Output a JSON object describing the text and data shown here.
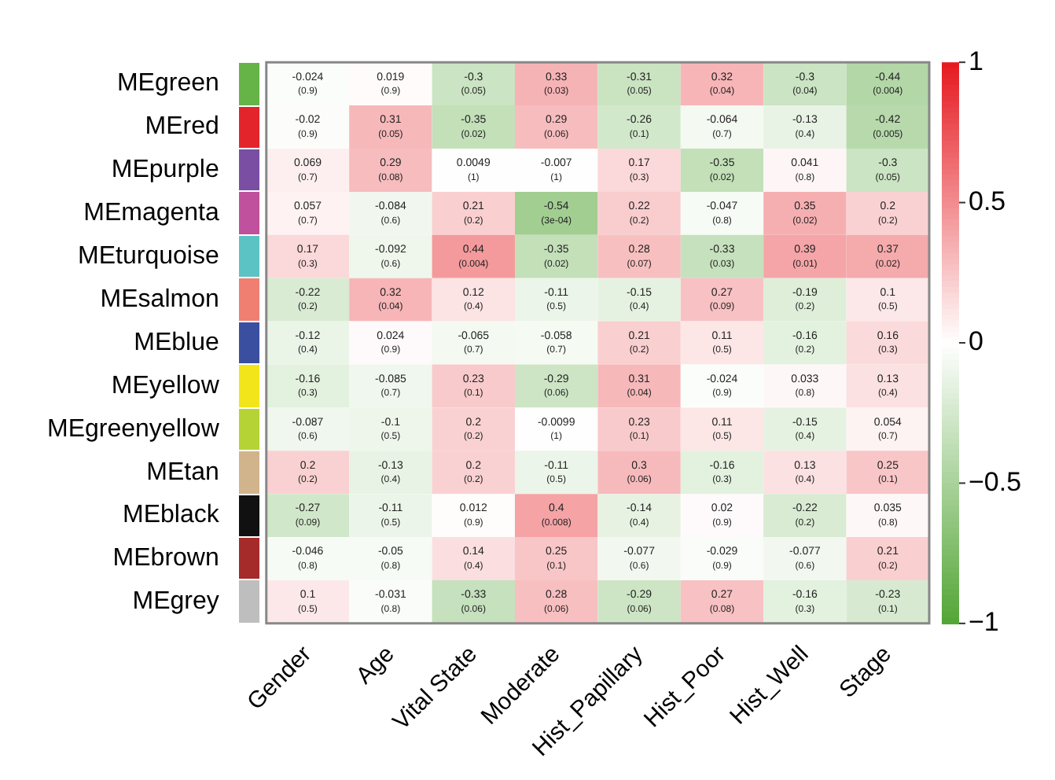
{
  "chart_data": {
    "type": "heatmap",
    "categories": [
      "Gender",
      "Age",
      "Vital State",
      "Moderate",
      "Hist_Papillary",
      "Hist_Poor",
      "Hist_Well",
      "Stage"
    ],
    "y_categories": [
      "MEgreen",
      "MEred",
      "MEpurple",
      "MEmagenta",
      "MEturquoise",
      "MEsalmon",
      "MEblue",
      "MEyellow",
      "MEgreenyellow",
      "MEtan",
      "MEblack",
      "MEbrown",
      "MEgrey"
    ],
    "cells": [
      [
        -0.024,
        0.019,
        -0.3,
        0.33,
        -0.31,
        0.32,
        -0.3,
        -0.44
      ],
      [
        -0.02,
        0.31,
        -0.35,
        0.29,
        -0.26,
        -0.064,
        -0.13,
        -0.42
      ],
      [
        0.069,
        0.29,
        0.0049,
        -0.007,
        0.17,
        -0.35,
        0.041,
        -0.3
      ],
      [
        0.057,
        -0.084,
        0.21,
        -0.54,
        0.22,
        -0.047,
        0.35,
        0.2
      ],
      [
        0.17,
        -0.092,
        0.44,
        -0.35,
        0.28,
        -0.33,
        0.39,
        0.37
      ],
      [
        -0.22,
        0.32,
        0.12,
        -0.11,
        -0.15,
        0.27,
        -0.19,
        0.1
      ],
      [
        -0.12,
        0.024,
        -0.065,
        -0.058,
        0.21,
        0.11,
        -0.16,
        0.16
      ],
      [
        -0.16,
        -0.085,
        0.23,
        -0.29,
        0.31,
        -0.024,
        0.033,
        0.13
      ],
      [
        -0.087,
        -0.1,
        0.2,
        -0.0099,
        0.23,
        0.11,
        -0.15,
        0.054
      ],
      [
        0.2,
        -0.13,
        0.2,
        -0.11,
        0.3,
        -0.16,
        0.13,
        0.25
      ],
      [
        -0.27,
        -0.11,
        0.012,
        0.4,
        -0.14,
        0.02,
        -0.22,
        0.035
      ],
      [
        -0.046,
        -0.05,
        0.14,
        0.25,
        -0.077,
        -0.029,
        -0.077,
        0.21
      ],
      [
        0.1,
        -0.031,
        -0.33,
        0.28,
        -0.29,
        0.27,
        -0.16,
        -0.23
      ]
    ],
    "cell_labels": [
      [
        "-0.024\n(0.9)",
        "0.019\n(0.9)",
        "-0.3\n(0.05)",
        "0.33\n(0.03)",
        "-0.31\n(0.05)",
        "0.32\n(0.04)",
        "-0.3\n(0.04)",
        "-0.44\n(0.004)"
      ],
      [
        "-0.02\n(0.9)",
        "0.31\n(0.05)",
        "-0.35\n(0.02)",
        "0.29\n(0.06)",
        "-0.26\n(0.1)",
        "-0.064\n(0.7)",
        "-0.13\n(0.4)",
        "-0.42\n(0.005)"
      ],
      [
        "0.069\n(0.7)",
        "0.29\n(0.08)",
        "0.0049\n(1)",
        "-0.007\n(1)",
        "0.17\n(0.3)",
        "-0.35\n(0.02)",
        "0.041\n(0.8)",
        "-0.3\n(0.05)"
      ],
      [
        "0.057\n(0.7)",
        "-0.084\n(0.6)",
        "0.21\n(0.2)",
        "-0.54\n(3e-04)",
        "0.22\n(0.2)",
        "-0.047\n(0.8)",
        "0.35\n(0.02)",
        "0.2\n(0.2)"
      ],
      [
        "0.17\n(0.3)",
        "-0.092\n(0.6)",
        "0.44\n(0.004)",
        "-0.35\n(0.02)",
        "0.28\n(0.07)",
        "-0.33\n(0.03)",
        "0.39\n(0.01)",
        "0.37\n(0.02)"
      ],
      [
        "-0.22\n(0.2)",
        "0.32\n(0.04)",
        "0.12\n(0.4)",
        "-0.11\n(0.5)",
        "-0.15\n(0.4)",
        "0.27\n(0.09)",
        "-0.19\n(0.2)",
        "0.1\n(0.5)"
      ],
      [
        "-0.12\n(0.4)",
        "0.024\n(0.9)",
        "-0.065\n(0.7)",
        "-0.058\n(0.7)",
        "0.21\n(0.2)",
        "0.11\n(0.5)",
        "-0.16\n(0.2)",
        "0.16\n(0.3)"
      ],
      [
        "-0.16\n(0.3)",
        "-0.085\n(0.7)",
        "0.23\n(0.1)",
        "-0.29\n(0.06)",
        "0.31\n(0.04)",
        "-0.024\n(0.9)",
        "0.033\n(0.8)",
        "0.13\n(0.4)"
      ],
      [
        "-0.087\n(0.6)",
        "-0.1\n(0.5)",
        "0.2\n(0.2)",
        "-0.0099\n(1)",
        "0.23\n(0.1)",
        "0.11\n(0.5)",
        "-0.15\n(0.4)",
        "0.054\n(0.7)"
      ],
      [
        "0.2\n(0.2)",
        "-0.13\n(0.4)",
        "0.2\n(0.2)",
        "-0.11\n(0.5)",
        "0.3\n(0.06)",
        "-0.16\n(0.3)",
        "0.13\n(0.4)",
        "0.25\n(0.1)"
      ],
      [
        "-0.27\n(0.09)",
        "-0.11\n(0.5)",
        "0.012\n(0.9)",
        "0.4\n(0.008)",
        "-0.14\n(0.4)",
        "0.02\n(0.9)",
        "-0.22\n(0.2)",
        "0.035\n(0.8)"
      ],
      [
        "-0.046\n(0.8)",
        "-0.05\n(0.8)",
        "0.14\n(0.4)",
        "0.25\n(0.1)",
        "-0.077\n(0.6)",
        "-0.029\n(0.9)",
        "-0.077\n(0.6)",
        "0.21\n(0.2)"
      ],
      [
        "0.1\n(0.5)",
        "-0.031\n(0.8)",
        "-0.33\n(0.06)",
        "0.28\n(0.06)",
        "-0.29\n(0.06)",
        "0.27\n(0.08)",
        "-0.16\n(0.3)",
        "-0.23\n(0.1)"
      ]
    ],
    "clim": [
      -1,
      1
    ],
    "cticks": [
      {
        "value": 1,
        "label": "1"
      },
      {
        "value": 0.5,
        "label": "0.5"
      },
      {
        "value": 0,
        "label": "0"
      },
      {
        "value": -0.5,
        "label": "−0.5"
      },
      {
        "value": -1,
        "label": "−1"
      }
    ]
  }
}
